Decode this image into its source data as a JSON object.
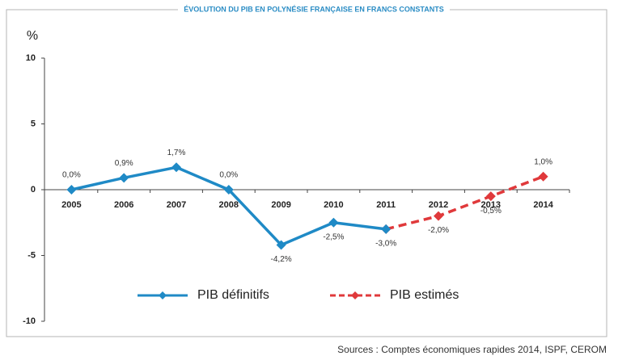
{
  "chart_data": {
    "type": "line",
    "title": "ÉVOLUTION DU PIB EN POLYNÉSIE FRANÇAISE EN FRANCS CONSTANTS",
    "y_unit": "%",
    "source": "Sources : Comptes économiques rapides 2014, ISPF, CEROM",
    "categories": [
      "2005",
      "2006",
      "2007",
      "2008",
      "2009",
      "2010",
      "2011",
      "2012",
      "2013",
      "2014"
    ],
    "series": [
      {
        "name": "PIB définitifs",
        "color": "#1f8ac6",
        "dashed": false,
        "values": [
          0.0,
          0.9,
          1.7,
          0.0,
          -4.2,
          -2.5,
          -3.0,
          null,
          null,
          null
        ],
        "value_labels": [
          "0,0%",
          "0,9%",
          "1,7%",
          "0,0%",
          "-4,2%",
          "-2,5%",
          "-3,0%",
          null,
          null,
          null
        ]
      },
      {
        "name": "PIB estimés",
        "color": "#e0393b",
        "dashed": true,
        "values": [
          null,
          null,
          null,
          null,
          null,
          null,
          -3.0,
          -2.0,
          -0.5,
          1.0
        ],
        "value_labels": [
          null,
          null,
          null,
          null,
          null,
          null,
          null,
          "-2,0%",
          "-0,5%",
          "1,0%"
        ]
      }
    ],
    "ylim": [
      -10,
      10
    ],
    "yticks": [
      10,
      5,
      0,
      -5,
      -10
    ],
    "grid": false,
    "legend": "bottom"
  }
}
